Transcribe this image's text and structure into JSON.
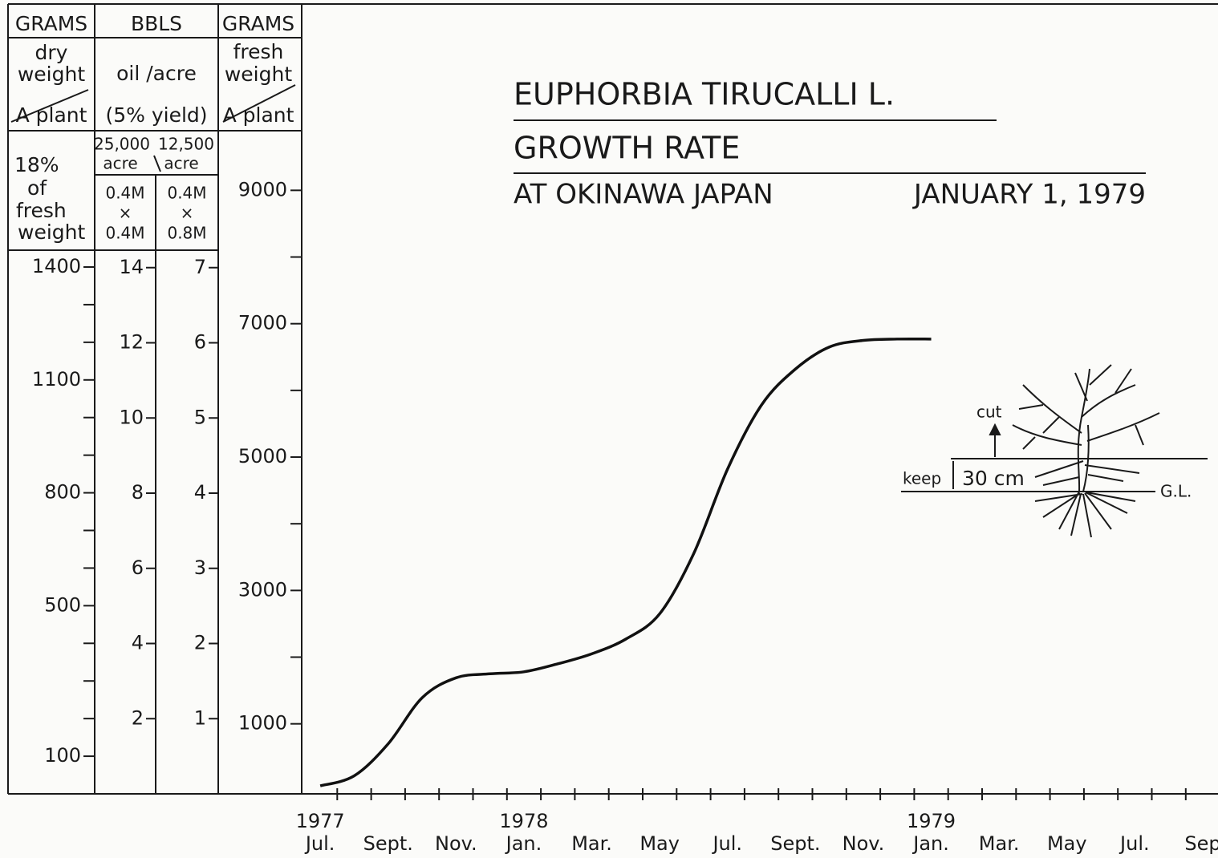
{
  "chart_data": {
    "type": "line",
    "title": "EUPHORBIA TIRUCALLI L.",
    "subtitle": "GROWTH RATE",
    "location": "AT OKINAWA JAPAN",
    "date": "JANUARY 1, 1979",
    "categories": [
      "Jul.",
      null,
      "Sept.",
      null,
      "Nov.",
      null,
      "Jan.",
      null,
      "Mar.",
      null,
      "May",
      null,
      "Jul.",
      null,
      "Sept.",
      null,
      "Nov.",
      null,
      "Jan.",
      null,
      "Mar.",
      null,
      "May",
      null,
      "Jul.",
      null,
      "Sep"
    ],
    "years": [
      "1977",
      null,
      null,
      null,
      null,
      null,
      "1978",
      null,
      null,
      null,
      null,
      null,
      null,
      null,
      null,
      null,
      null,
      null,
      "1979",
      null,
      null,
      null,
      null,
      null,
      null,
      null,
      null
    ],
    "values": [
      70,
      220,
      700,
      1390,
      1690,
      1750,
      1780,
      1900,
      2050,
      2270,
      2650,
      3550,
      4820,
      5780,
      6320,
      6650,
      6750,
      6770,
      6770,
      null,
      null,
      null,
      null,
      null,
      null,
      null,
      null
    ],
    "color": "#111111",
    "ylim": [
      -50,
      9870
    ],
    "yticks": [
      1000,
      3000,
      5000,
      7000,
      9000
    ],
    "yminorticks": [
      2000,
      4000,
      6000,
      8000
    ],
    "yheader": {
      "unit": "GRAMS",
      "lines": [
        "fresh",
        "weight"
      ],
      "per": "A plant"
    },
    "dry_axis": {
      "unit": "GRAMS",
      "lines": [
        "dry",
        "weight"
      ],
      "per": "A plant",
      "note": [
        "18%",
        "of",
        "fresh",
        "weight"
      ],
      "ylim": [
        0,
        1758
      ],
      "yticks": [
        100,
        500,
        800,
        1100,
        1400
      ],
      "yminorticks": [
        200,
        300,
        400,
        600,
        700,
        900,
        1000,
        1200,
        1300
      ]
    },
    "oil_axis": {
      "unit": "BBLS",
      "lines": [
        "oil /acre",
        "(5% yield)"
      ],
      "columns": [
        {
          "density": "25,000",
          "per": "acre",
          "spacing": [
            "0.4M",
            "×",
            "0.4M"
          ],
          "ylim": [
            0,
            17.6
          ],
          "yticks": [
            2,
            4,
            6,
            8,
            10,
            12,
            14
          ]
        },
        {
          "density": "12,500",
          "per": "acre",
          "spacing": [
            "0.4M",
            "×",
            "0.8M"
          ],
          "ylim": [
            0,
            8.8
          ],
          "yticks": [
            1,
            2,
            3,
            4,
            5,
            6,
            7
          ]
        }
      ]
    },
    "annotations": {
      "cut": "cut",
      "keep": "keep",
      "height": "30 cm",
      "ground": "G.L."
    }
  }
}
